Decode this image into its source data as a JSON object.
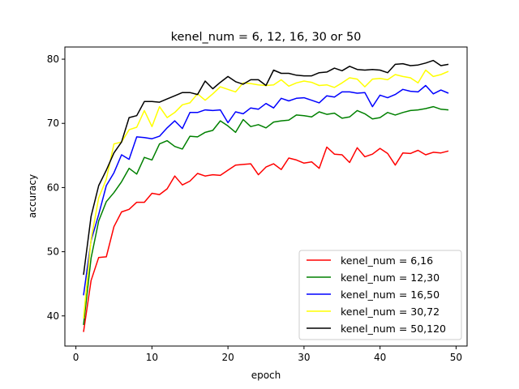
{
  "chart_data": {
    "type": "line",
    "title": "kenel_num = 6, 12, 16, 30 or 50",
    "xlabel": "epoch",
    "ylabel": "accuracy",
    "xlim": [
      -1.45,
      51.45
    ],
    "ylim": [
      35.3,
      81.9
    ],
    "xticks": [
      0,
      10,
      20,
      30,
      40,
      50
    ],
    "yticks": [
      40,
      50,
      60,
      70,
      80
    ],
    "grid": false,
    "legend_position": "lower-right",
    "x": [
      1,
      2,
      3,
      4,
      5,
      6,
      7,
      8,
      9,
      10,
      11,
      12,
      13,
      14,
      15,
      16,
      17,
      18,
      19,
      20,
      21,
      22,
      23,
      24,
      25,
      26,
      27,
      28,
      29,
      30,
      31,
      32,
      33,
      34,
      35,
      36,
      37,
      38,
      39,
      40,
      41,
      42,
      43,
      44,
      45,
      46,
      47,
      48,
      49
    ],
    "series": [
      {
        "name": "kenel_num = 6,16",
        "color": "#ff0000",
        "values": [
          37.5,
          45.5,
          49.1,
          49.2,
          53.9,
          56.2,
          56.6,
          57.7,
          57.7,
          59.1,
          58.9,
          59.8,
          61.8,
          60.4,
          61.0,
          62.2,
          61.8,
          62.0,
          61.9,
          62.7,
          63.5,
          63.6,
          63.7,
          62.0,
          63.2,
          63.7,
          62.8,
          64.6,
          64.3,
          63.8,
          64.0,
          63.0,
          66.3,
          65.2,
          65.1,
          63.9,
          66.2,
          64.8,
          65.2,
          66.1,
          65.3,
          63.5,
          65.4,
          65.3,
          65.8,
          65.1,
          65.5,
          65.4,
          65.7
        ]
      },
      {
        "name": "kenel_num = 12,30",
        "color": "#008000",
        "values": [
          38.6,
          49.0,
          54.8,
          57.8,
          59.2,
          60.9,
          63.0,
          62.1,
          64.7,
          64.3,
          66.8,
          67.3,
          66.4,
          66.0,
          68.0,
          67.9,
          68.6,
          68.9,
          70.4,
          69.6,
          68.6,
          70.6,
          69.5,
          69.8,
          69.3,
          70.2,
          70.4,
          70.5,
          71.3,
          71.2,
          71.0,
          71.8,
          71.4,
          71.6,
          70.8,
          71.0,
          72.0,
          71.5,
          70.7,
          70.9,
          71.7,
          71.3,
          71.7,
          72.0,
          72.1,
          72.3,
          72.6,
          72.2,
          72.1
        ]
      },
      {
        "name": "kenel_num = 16,50",
        "color": "#0000ff",
        "values": [
          43.2,
          51.7,
          55.8,
          60.3,
          62.3,
          65.1,
          64.4,
          67.9,
          67.8,
          67.6,
          68.0,
          69.3,
          70.4,
          69.2,
          71.7,
          71.7,
          72.1,
          72.0,
          72.1,
          70.1,
          71.8,
          71.5,
          72.4,
          72.2,
          73.1,
          72.4,
          73.9,
          73.5,
          73.9,
          74.0,
          73.6,
          73.2,
          74.3,
          74.1,
          74.9,
          74.9,
          74.7,
          74.8,
          72.6,
          74.4,
          74.0,
          74.5,
          75.3,
          75.0,
          74.9,
          75.9,
          74.6,
          75.2,
          74.7
        ]
      },
      {
        "name": "kenel_num = 30,72",
        "color": "#ffff00",
        "values": [
          39.6,
          51.9,
          58.4,
          61.3,
          66.8,
          67.1,
          69.0,
          69.4,
          72.0,
          69.5,
          72.6,
          70.9,
          71.7,
          72.9,
          73.2,
          74.6,
          73.6,
          74.6,
          75.7,
          75.3,
          74.9,
          76.3,
          76.2,
          76.0,
          75.9,
          76.0,
          76.8,
          75.8,
          76.3,
          76.6,
          76.4,
          75.9,
          76.0,
          75.6,
          76.3,
          77.1,
          76.9,
          75.7,
          76.9,
          77.0,
          76.8,
          77.6,
          77.3,
          77.1,
          76.3,
          78.3,
          77.3,
          77.6,
          78.1
        ]
      },
      {
        "name": "kenel_num = 50,120",
        "color": "#000000",
        "values": [
          46.4,
          55.5,
          60.3,
          62.7,
          65.4,
          67.1,
          70.9,
          71.2,
          73.4,
          73.4,
          73.3,
          73.8,
          74.3,
          74.8,
          74.8,
          74.5,
          76.6,
          75.4,
          76.4,
          77.3,
          76.5,
          76.1,
          76.8,
          76.8,
          75.9,
          78.3,
          77.8,
          77.8,
          77.5,
          77.4,
          77.4,
          77.9,
          78.0,
          78.6,
          78.2,
          78.9,
          78.4,
          78.3,
          78.4,
          78.3,
          77.9,
          79.2,
          79.3,
          79.0,
          79.1,
          79.4,
          79.8,
          79.0,
          79.2
        ]
      }
    ]
  }
}
